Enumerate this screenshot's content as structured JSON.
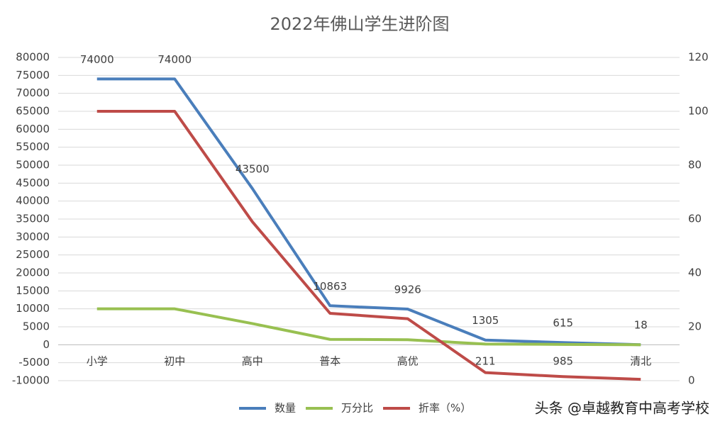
{
  "chart_data": {
    "type": "line",
    "title": "2022年佛山学生进阶图",
    "categories": [
      "小学",
      "初中",
      "高中",
      "普本",
      "高优",
      "211",
      "985",
      "清北"
    ],
    "series": [
      {
        "name": "数量",
        "color": "#4a7ebb",
        "values": [
          74000,
          74000,
          43500,
          10863,
          9926,
          1305,
          615,
          18
        ],
        "data_labels": true
      },
      {
        "name": "万分比",
        "color": "#98c051",
        "values": [
          10000,
          10000,
          5900,
          1500,
          1400,
          200,
          100,
          0
        ]
      },
      {
        "name": "折率（%）",
        "color": "#be4b48",
        "axis": "y2",
        "values": [
          100,
          100,
          59,
          25,
          23,
          3,
          1.5,
          0.5
        ]
      }
    ],
    "ylim": [
      -10000,
      80000
    ],
    "yticks": [
      -10000,
      -5000,
      0,
      5000,
      10000,
      15000,
      20000,
      25000,
      30000,
      35000,
      40000,
      45000,
      50000,
      55000,
      60000,
      65000,
      70000,
      75000,
      80000
    ],
    "y2lim": [
      0,
      120
    ],
    "y2ticks": [
      0,
      20,
      40,
      60,
      80,
      100,
      120
    ],
    "grid": true,
    "legend_position": "bottom",
    "watermark": "头条 @卓越教育中高考学校"
  }
}
